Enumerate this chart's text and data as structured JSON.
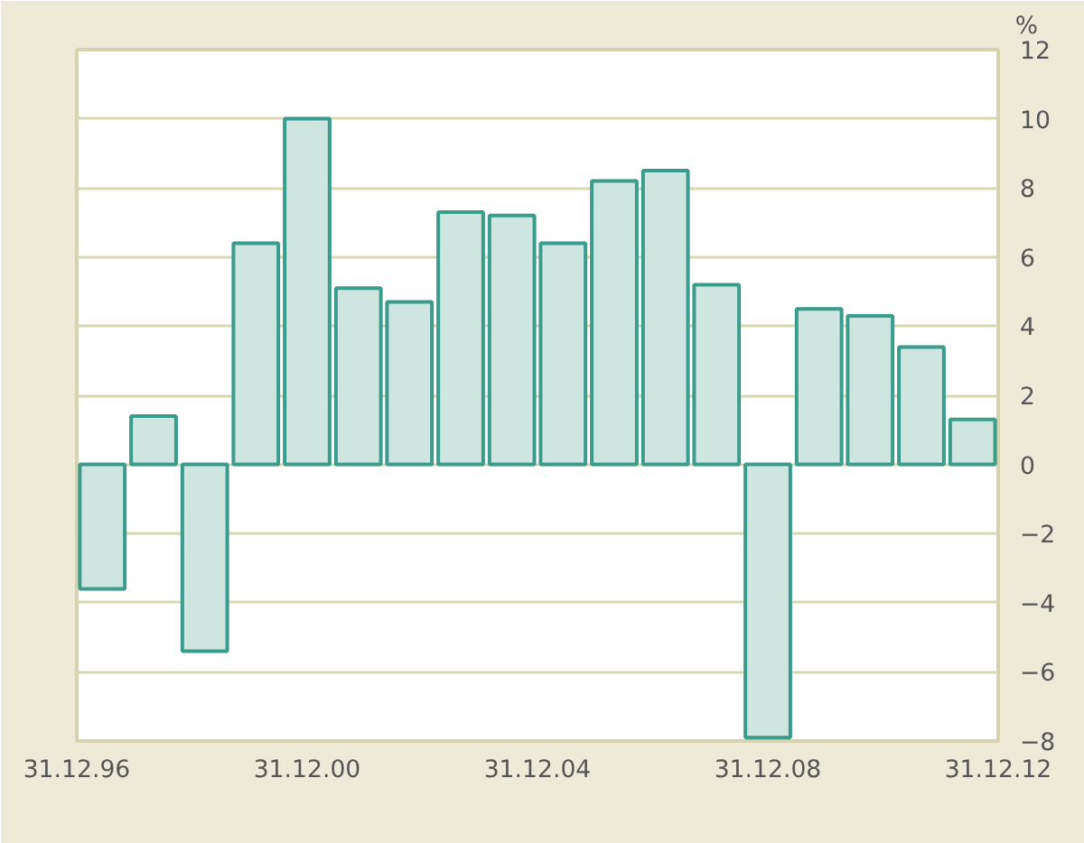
{
  "chart_data": {
    "type": "bar",
    "ylabel": "%",
    "x": [
      "1997-06-11",
      "1998-05-02",
      "1999-03-23",
      "2000-02-10",
      "2000-12-31",
      "2001-11-21",
      "2002-10-11",
      "2003-09-01",
      "2004-07-22",
      "2005-06-11",
      "2006-05-02",
      "2007-03-23",
      "2008-02-10",
      "2008-12-31",
      "2009-11-21",
      "2010-10-11",
      "2011-09-01",
      "2012-07-22"
    ],
    "values": [
      -3.6,
      1.4,
      -5.4,
      6.4,
      10.0,
      5.1,
      4.7,
      7.3,
      7.2,
      6.4,
      8.2,
      8.5,
      5.2,
      -7.9,
      4.5,
      4.3,
      3.4,
      1.3
    ],
    "color": "#cfe5df",
    "xlim": [
      "1996-12-31",
      "2012-12-31"
    ],
    "xticks": [
      {
        "value": "1996-12-31",
        "label": "31.12.96"
      },
      {
        "value": "2000-12-31",
        "label": "31.12.00"
      },
      {
        "value": "2004-12-31",
        "label": "31.12.04"
      },
      {
        "value": "2008-12-31",
        "label": "31.12.08"
      },
      {
        "value": "2012-12-31",
        "label": "31.12.12"
      }
    ],
    "ylim": [
      -8,
      12
    ],
    "yticks": [
      -8,
      -6,
      -4,
      -2,
      0,
      2,
      4,
      6,
      8,
      10,
      12
    ],
    "grid": "y"
  }
}
